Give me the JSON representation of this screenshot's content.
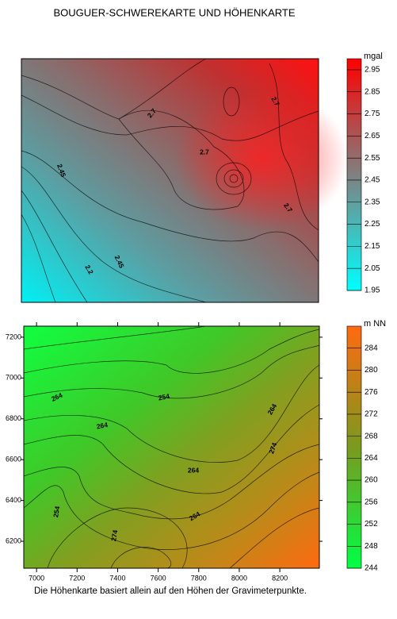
{
  "title": "BOUGUER-SCHWEREKARTE UND HÖHENKARTE",
  "caption": "Die Höhenkarte basiert allein auf den Höhen der Gravimeterpunkte.",
  "chart_data": [
    {
      "type": "contour",
      "colorbar": {
        "label": "mgal",
        "lim": [
          1.95,
          3.0
        ],
        "ticks": [
          1.95,
          2.05,
          2.15,
          2.25,
          2.35,
          2.45,
          2.55,
          2.65,
          2.75,
          2.85,
          2.95
        ],
        "colors": [
          "#00ffff",
          "#808080",
          "#ff0000"
        ]
      },
      "contour_labels": [
        "2.7",
        "2.7",
        "2.7",
        "2.7",
        "2.45",
        "2.45",
        "2.2"
      ]
    },
    {
      "type": "contour",
      "xlim": [
        6937,
        8395
      ],
      "xticks": [
        7000,
        7200,
        7400,
        7600,
        7800,
        8000,
        8200
      ],
      "ylim": [
        6068,
        7254
      ],
      "yticks": [
        6200,
        6400,
        6600,
        6800,
        7000,
        7200
      ],
      "colorbar": {
        "label": "m NN",
        "lim": [
          244,
          288
        ],
        "ticks": [
          244,
          248,
          252,
          256,
          260,
          264,
          268,
          272,
          276,
          280,
          284
        ],
        "colors": [
          "#00ff44",
          "#7a9a1e",
          "#ff6a10"
        ]
      },
      "contour_labels": [
        "264",
        "254",
        "264",
        "264",
        "264",
        "274",
        "254",
        "274",
        "264"
      ]
    }
  ]
}
